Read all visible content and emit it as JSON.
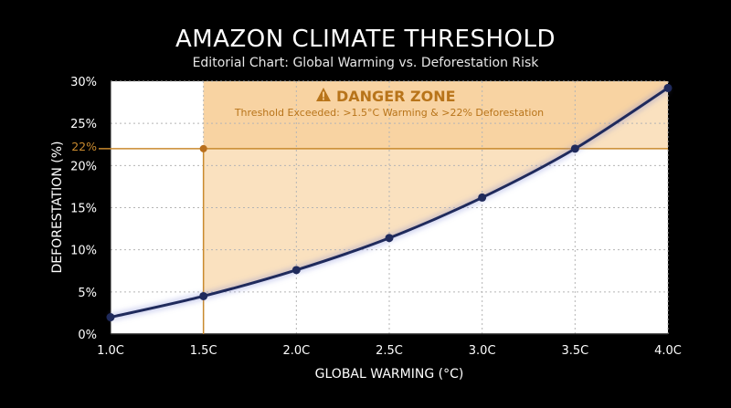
{
  "header": {
    "title": "AMAZON CLIMATE THRESHOLD",
    "subtitle": "Editorial Chart: Global Warming vs. Deforestation Risk"
  },
  "chart_data": {
    "type": "line",
    "xlabel": "GLOBAL WARMING (°C)",
    "ylabel": "DEFORESTATION (%)",
    "xlim": [
      1.0,
      4.0
    ],
    "ylim": [
      0,
      30
    ],
    "x_ticks": [
      1.0,
      1.5,
      2.0,
      2.5,
      3.0,
      3.5,
      4.0
    ],
    "x_tick_labels": [
      "1.0C",
      "1.5C",
      "2.0C",
      "2.5C",
      "3.0C",
      "3.5C",
      "4.0C"
    ],
    "y_ticks": [
      0,
      5,
      10,
      15,
      20,
      25,
      30
    ],
    "y_tick_labels": [
      "0%",
      "5%",
      "10%",
      "15%",
      "20%",
      "25%",
      "30%"
    ],
    "grid": true,
    "series": [
      {
        "x": [
          1.0,
          1.5,
          2.0,
          2.5,
          3.0,
          3.5,
          4.0
        ],
        "y": [
          2.0,
          4.5,
          7.6,
          11.4,
          16.2,
          22.0,
          29.2
        ]
      }
    ],
    "threshold": {
      "x": 1.5,
      "y": 22,
      "y_label": "22%",
      "zone_title": "DANGER ZONE",
      "zone_subtitle": "Threshold Exceeded: >1.5°C Warming & >22% Deforestation"
    },
    "colors": {
      "line": "#1f2a5c",
      "zone": "#f5c98a",
      "accent": "#c98a2e",
      "zone_text": "#b8741a",
      "grid": "#b5b5b5"
    }
  }
}
